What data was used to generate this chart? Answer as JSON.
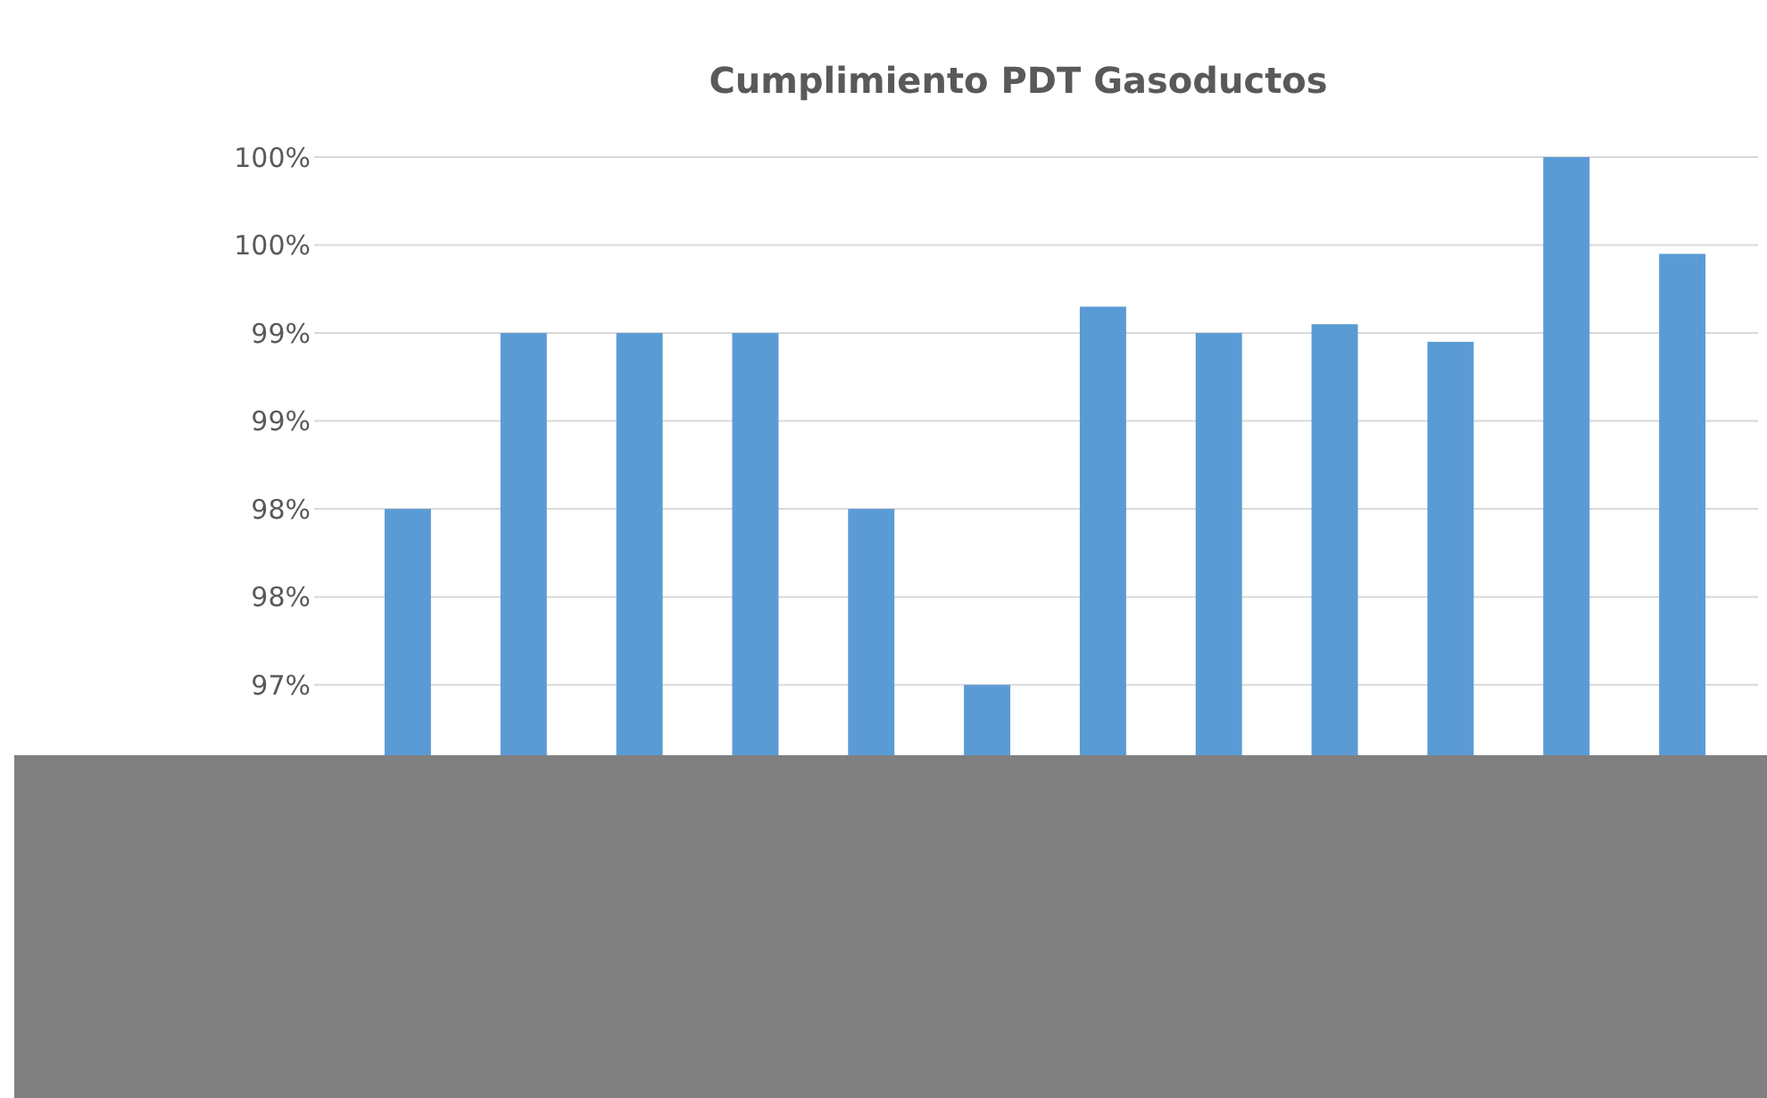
{
  "chart_data": {
    "type": "bar",
    "title": "Cumplimiento PDT Gasoductos",
    "categories": [
      null,
      null,
      null,
      null,
      null,
      null,
      null,
      null,
      null,
      null,
      null,
      null
    ],
    "values": [
      98,
      99,
      99,
      99,
      98,
      97,
      99.15,
      99,
      99.05,
      98.95,
      100,
      99.45
    ],
    "color": "#5b9bd5",
    "ylim": [
      96.6,
      100
    ],
    "yticks": [
      {
        "value": 97,
        "label": "97%"
      },
      {
        "value": 97.5,
        "label": "98%"
      },
      {
        "value": 98,
        "label": "98%"
      },
      {
        "value": 98.5,
        "label": "99%"
      },
      {
        "value": 99,
        "label": "99%"
      },
      {
        "value": 99.5,
        "label": "100%"
      },
      {
        "value": 100,
        "label": "100%"
      }
    ],
    "grid": "y"
  }
}
